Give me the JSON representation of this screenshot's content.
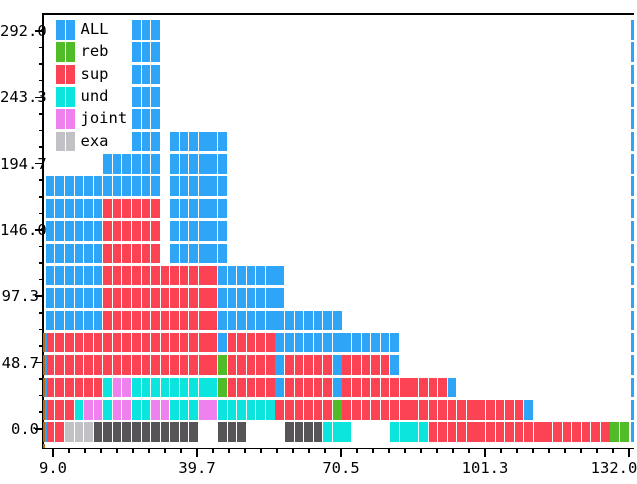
{
  "palette": {
    "B": "#2EA5F7",
    "G": "#4FBC28",
    "R": "#FB4353",
    "C": "#0CE4DE",
    "V": "#EE81EE",
    "S": "#C2C1C6",
    "D": "#575458",
    "edge_orange": "#BD6914",
    "axis": "#000000",
    "background": "#ffffff"
  },
  "legend": {
    "items": [
      {
        "label": "ALL",
        "color_key": "B"
      },
      {
        "label": "reb",
        "color_key": "G"
      },
      {
        "label": "sup",
        "color_key": "R"
      },
      {
        "label": "und",
        "color_key": "C"
      },
      {
        "label": "joint",
        "color_key": "V"
      },
      {
        "label": "exa",
        "color_key": "S"
      }
    ]
  },
  "axes": {
    "x": {
      "tick_labels": [
        "9.0",
        "39.7",
        "70.5",
        "101.3",
        "132.0"
      ]
    },
    "y": {
      "tick_labels": [
        "292.0",
        "243.3",
        "194.7",
        "146.0",
        "97.3",
        "48.7",
        "0.0"
      ]
    }
  },
  "chart_data": {
    "type": "histogram",
    "orientation": "vertical",
    "title": "",
    "xlabel": "",
    "ylabel": "",
    "x_range": [
      9.0,
      132.0
    ],
    "y_range": [
      0.0,
      292.0
    ],
    "x_ticks": [
      9.0,
      39.7,
      70.5,
      101.3,
      132.0
    ],
    "y_ticks": [
      0.0,
      48.7,
      97.3,
      146.0,
      194.7,
      243.3,
      292.0
    ],
    "n_bins": 61,
    "bin_step": 2.05,
    "count_per_cell_row": 16.2,
    "grid_on": false,
    "legend_position": "upper-left",
    "series": [
      {
        "name": "ALL",
        "color": "#2EA5F7"
      },
      {
        "name": "reb",
        "color": "#4FBC28"
      },
      {
        "name": "sup",
        "color": "#FB4353"
      },
      {
        "name": "und",
        "color": "#0CE4DE"
      },
      {
        "name": "joint",
        "color": "#EE81EE"
      },
      {
        "name": "exa",
        "color": "#C2C1C6"
      }
    ],
    "column_top_counts": [
      186,
      186,
      186,
      186,
      186,
      186,
      203,
      203,
      203,
      295,
      295,
      295,
      122,
      219,
      219,
      219,
      219,
      219,
      219,
      122,
      122,
      122,
      122,
      122,
      122,
      89,
      89,
      89,
      89,
      89,
      89,
      73,
      73,
      73,
      73,
      73,
      73,
      40,
      40,
      40,
      40,
      40,
      40,
      24,
      24,
      24,
      24,
      24,
      24,
      24,
      24,
      8,
      8,
      8,
      8,
      8,
      8,
      8,
      8,
      8,
      8
    ],
    "cell_grid": {
      "cols": 61,
      "rows": 19,
      "note": "runs are [startColumn, runLength, colorKey]; row 0 = top (y=292) .. row 18 = bottom (y=0)",
      "runs": [
        [
          [
            9,
            3,
            "B"
          ]
        ],
        [
          [
            9,
            3,
            "B"
          ]
        ],
        [
          [
            9,
            3,
            "B"
          ]
        ],
        [
          [
            9,
            3,
            "B"
          ]
        ],
        [
          [
            9,
            3,
            "B"
          ]
        ],
        [
          [
            9,
            3,
            "B"
          ],
          [
            13,
            6,
            "B"
          ]
        ],
        [
          [
            6,
            6,
            "B"
          ],
          [
            13,
            6,
            "B"
          ]
        ],
        [
          [
            0,
            12,
            "B"
          ],
          [
            13,
            6,
            "B"
          ]
        ],
        [
          [
            0,
            6,
            "B"
          ],
          [
            6,
            6,
            "R"
          ],
          [
            13,
            6,
            "B"
          ]
        ],
        [
          [
            0,
            6,
            "B"
          ],
          [
            6,
            6,
            "R"
          ],
          [
            13,
            6,
            "B"
          ]
        ],
        [
          [
            0,
            6,
            "B"
          ],
          [
            6,
            6,
            "R"
          ],
          [
            13,
            6,
            "B"
          ]
        ],
        [
          [
            0,
            6,
            "B"
          ],
          [
            6,
            12,
            "R"
          ],
          [
            18,
            7,
            "B"
          ]
        ],
        [
          [
            0,
            6,
            "B"
          ],
          [
            6,
            12,
            "R"
          ],
          [
            18,
            7,
            "B"
          ]
        ],
        [
          [
            0,
            6,
            "B"
          ],
          [
            6,
            12,
            "R"
          ],
          [
            18,
            13,
            "B"
          ]
        ],
        [
          [
            0,
            18,
            "R"
          ],
          [
            18,
            1,
            "B"
          ],
          [
            19,
            5,
            "R"
          ],
          [
            24,
            13,
            "B"
          ]
        ],
        [
          [
            0,
            18,
            "R"
          ],
          [
            18,
            1,
            "G"
          ],
          [
            19,
            5,
            "R"
          ],
          [
            24,
            1,
            "B"
          ],
          [
            25,
            5,
            "R"
          ],
          [
            30,
            1,
            "B"
          ],
          [
            31,
            5,
            "R"
          ],
          [
            36,
            1,
            "B"
          ]
        ],
        [
          [
            0,
            6,
            "R"
          ],
          [
            6,
            1,
            "C"
          ],
          [
            7,
            2,
            "V"
          ],
          [
            9,
            9,
            "C"
          ],
          [
            18,
            1,
            "G"
          ],
          [
            19,
            5,
            "R"
          ],
          [
            24,
            1,
            "B"
          ],
          [
            25,
            5,
            "R"
          ],
          [
            30,
            1,
            "B"
          ],
          [
            31,
            11,
            "R"
          ],
          [
            42,
            1,
            "B"
          ]
        ],
        [
          [
            0,
            3,
            "R"
          ],
          [
            3,
            1,
            "C"
          ],
          [
            4,
            2,
            "V"
          ],
          [
            6,
            1,
            "C"
          ],
          [
            7,
            2,
            "V"
          ],
          [
            9,
            2,
            "C"
          ],
          [
            11,
            2,
            "V"
          ],
          [
            13,
            3,
            "C"
          ],
          [
            16,
            2,
            "V"
          ],
          [
            18,
            6,
            "C"
          ],
          [
            24,
            6,
            "R"
          ],
          [
            30,
            1,
            "G"
          ],
          [
            31,
            19,
            "R"
          ],
          [
            50,
            1,
            "B"
          ]
        ],
        [
          [
            0,
            2,
            "R"
          ],
          [
            2,
            3,
            "S"
          ],
          [
            5,
            11,
            "D"
          ],
          [
            18,
            3,
            "D"
          ],
          [
            25,
            4,
            "D"
          ],
          [
            29,
            3,
            "C"
          ],
          [
            36,
            4,
            "C"
          ],
          [
            40,
            19,
            "R"
          ],
          [
            59,
            2,
            "G"
          ]
        ]
      ]
    },
    "right_edge_clipped_rows": [
      0,
      18
    ],
    "left_edge_clipped_rows": [
      14,
      18
    ]
  }
}
